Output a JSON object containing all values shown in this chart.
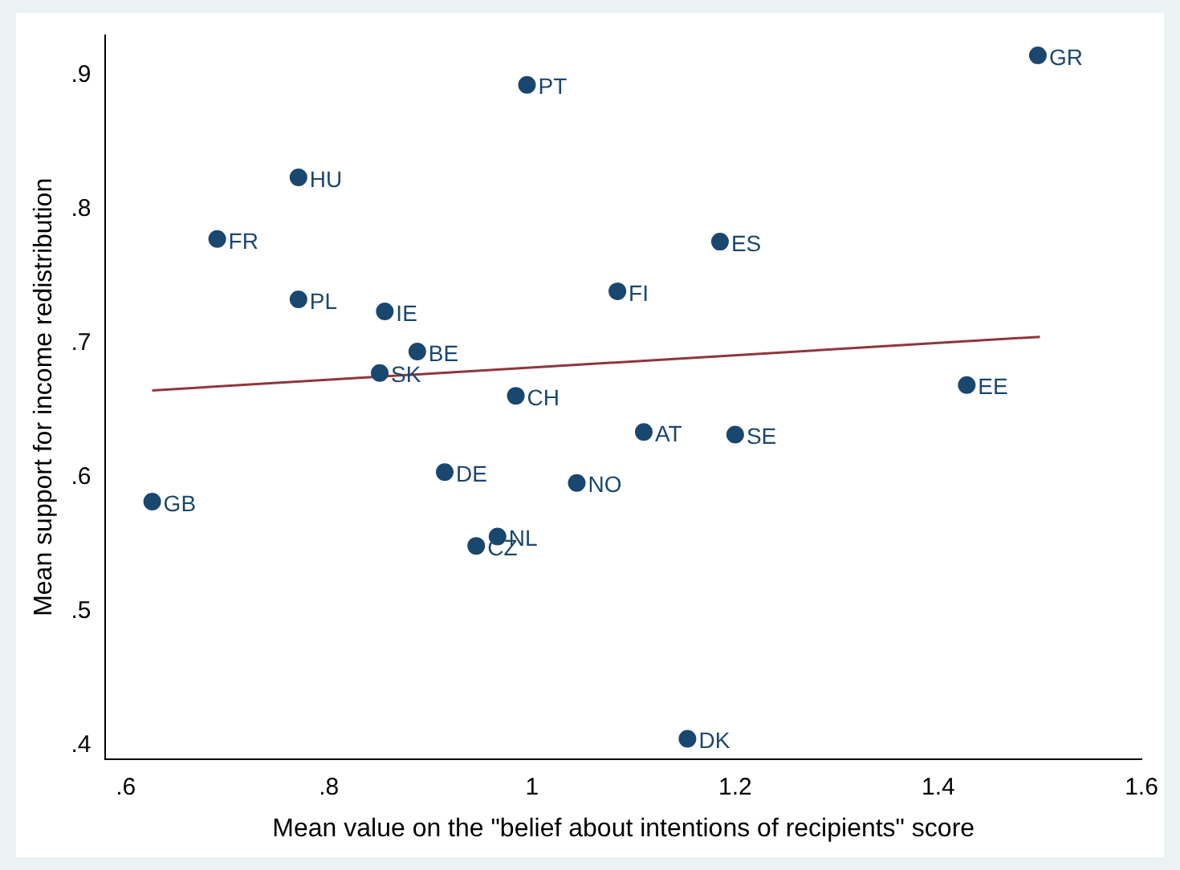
{
  "chart_data": {
    "type": "scatter",
    "xlabel": "Mean value on the \"belief about intentions of recipients\" score",
    "ylabel": "Mean support for income redistribution",
    "series": [
      {
        "marker": "circle",
        "color": "#1a476f",
        "x": [
          1.498,
          0.995,
          0.77,
          0.69,
          1.185,
          0.77,
          1.084,
          0.855,
          0.887,
          0.85,
          0.984,
          1.428,
          1.11,
          1.2,
          0.914,
          1.044,
          0.626,
          0.966,
          0.945,
          1.153
        ],
        "values": [
          0.915,
          0.893,
          0.824,
          0.778,
          0.776,
          0.733,
          0.739,
          0.724,
          0.694,
          0.678,
          0.661,
          0.669,
          0.634,
          0.632,
          0.604,
          0.596,
          0.582,
          0.556,
          0.549,
          0.405
        ]
      },
      {
        "type": "line",
        "marker": "none",
        "color": "#90353b",
        "x": [
          0.626,
          1.5
        ],
        "values": [
          0.665,
          0.705
        ]
      }
    ],
    "annotations": [
      {
        "text": "GR",
        "x": 1.498,
        "y": 0.915
      },
      {
        "text": "PT",
        "x": 0.995,
        "y": 0.893
      },
      {
        "text": "HU",
        "x": 0.77,
        "y": 0.824
      },
      {
        "text": "FR",
        "x": 0.69,
        "y": 0.778
      },
      {
        "text": "ES",
        "x": 1.185,
        "y": 0.776
      },
      {
        "text": "PL",
        "x": 0.77,
        "y": 0.733
      },
      {
        "text": "FI",
        "x": 1.084,
        "y": 0.739
      },
      {
        "text": "IE",
        "x": 0.855,
        "y": 0.724
      },
      {
        "text": "BE",
        "x": 0.887,
        "y": 0.694
      },
      {
        "text": "SK",
        "x": 0.85,
        "y": 0.678
      },
      {
        "text": "CH",
        "x": 0.984,
        "y": 0.661
      },
      {
        "text": "EE",
        "x": 1.428,
        "y": 0.669
      },
      {
        "text": "AT",
        "x": 1.11,
        "y": 0.634
      },
      {
        "text": "SE",
        "x": 1.2,
        "y": 0.632
      },
      {
        "text": "DE",
        "x": 0.914,
        "y": 0.604
      },
      {
        "text": "NO",
        "x": 1.044,
        "y": 0.596
      },
      {
        "text": "GB",
        "x": 0.626,
        "y": 0.582
      },
      {
        "text": "NL",
        "x": 0.966,
        "y": 0.556
      },
      {
        "text": "CZ",
        "x": 0.945,
        "y": 0.549
      },
      {
        "text": "DK",
        "x": 1.153,
        "y": 0.405
      }
    ],
    "xlim": [
      0.58,
      1.6
    ],
    "xticks": [
      {
        "value": 0.6,
        "label": ".6"
      },
      {
        "value": 0.8,
        "label": ".8"
      },
      1,
      1.2,
      1.4,
      1.6
    ],
    "ylim": [
      0.39,
      0.93
    ],
    "yticks": [
      {
        "value": 0.4,
        "label": ".4"
      },
      {
        "value": 0.5,
        "label": ".5"
      },
      {
        "value": 0.6,
        "label": ".6"
      },
      {
        "value": 0.7,
        "label": ".7"
      },
      {
        "value": 0.8,
        "label": ".8"
      },
      {
        "value": 0.9,
        "label": ".9"
      }
    ],
    "grid": false,
    "legend": false,
    "line_style": "solid"
  }
}
